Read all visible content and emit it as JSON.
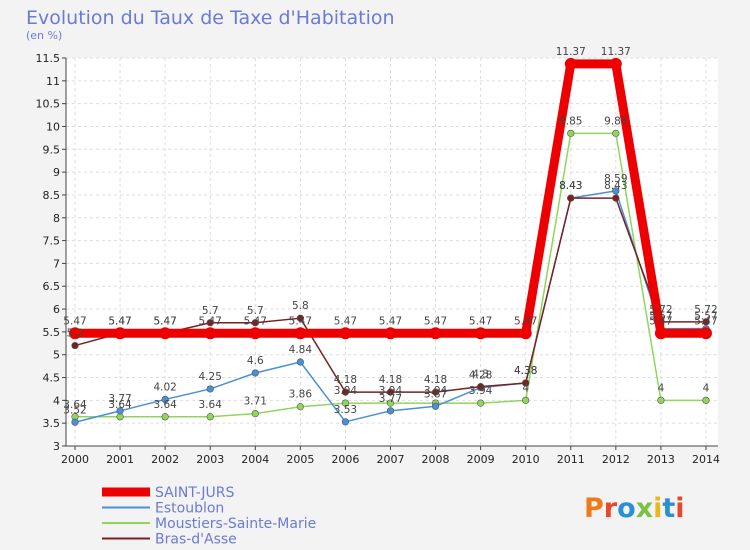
{
  "chart_data": {
    "type": "line",
    "title": "Evolution du Taux de Taxe d'Habitation",
    "subtitle": "(en %)",
    "xlabel": "",
    "ylabel": "",
    "categories": [
      "2000",
      "2001",
      "2002",
      "2003",
      "2004",
      "2005",
      "2006",
      "2007",
      "2008",
      "2009",
      "2010",
      "2011",
      "2012",
      "2013",
      "2014"
    ],
    "ylim": [
      3,
      11.5
    ],
    "yticks": [
      3,
      3.5,
      4,
      4.5,
      5,
      5.5,
      6,
      6.5,
      7,
      7.5,
      8,
      8.5,
      9,
      9.5,
      10,
      10.5,
      11,
      11.5
    ],
    "ytick_labels": [
      "3",
      "3.5",
      "4",
      "4.5",
      "5",
      "5.5",
      "6",
      "6.5",
      "7",
      "7.5",
      "8",
      "8.5",
      "9",
      "9.5",
      "10",
      "10.5",
      "11",
      "11.5"
    ],
    "grid": true,
    "series": [
      {
        "name": "SAINT-JURS",
        "color": "#ee0000",
        "values": [
          5.47,
          5.47,
          5.47,
          5.47,
          5.47,
          5.47,
          5.47,
          5.47,
          5.47,
          5.47,
          5.47,
          11.37,
          11.37,
          5.47,
          5.47
        ],
        "labels": [
          "5.47",
          "5.47",
          "5.47",
          "5.47",
          "5.47",
          "5.47",
          "5.47",
          "5.47",
          "5.47",
          "5.47",
          "5.47",
          "11.37",
          "11.37",
          "5.47",
          "5.47"
        ]
      },
      {
        "name": "Estoublon",
        "color": "#4a90d6",
        "values": [
          3.52,
          3.77,
          4.02,
          4.25,
          4.6,
          4.84,
          3.53,
          3.77,
          3.87,
          4.28,
          4.38,
          8.43,
          8.59,
          5.57,
          5.57
        ],
        "labels": [
          "3.52",
          "3.77",
          "4.02",
          "4.25",
          "4.6",
          "4.84",
          "3.53",
          "3.77",
          "3.87",
          "4.28",
          "4.38",
          "8.43",
          "8.59",
          "5.57",
          "5.57"
        ]
      },
      {
        "name": "Moustiers-Sainte-Marie",
        "color": "#8fd65a",
        "values": [
          3.64,
          3.64,
          3.64,
          3.64,
          3.71,
          3.86,
          3.94,
          3.94,
          3.94,
          3.94,
          4.0,
          9.85,
          9.85,
          4.0,
          4.0
        ],
        "labels": [
          "3.64",
          "3.64",
          "3.64",
          "3.64",
          "3.71",
          "3.86",
          "3.94",
          "3.94",
          "3.94",
          "3.94",
          "4",
          "9.85",
          "9.85",
          "4",
          "4"
        ]
      },
      {
        "name": "Bras-d'Asse",
        "color": "#7a2222",
        "values": [
          5.2,
          5.47,
          5.47,
          5.7,
          5.7,
          5.8,
          4.18,
          4.18,
          4.18,
          4.3,
          4.38,
          8.43,
          8.43,
          5.72,
          5.72
        ],
        "labels": [
          "5.2",
          "5.47",
          "5.47",
          "5.7",
          "5.7",
          "5.8",
          "4.18",
          "4.18",
          "4.18",
          "4.3",
          "4.38",
          "8.43",
          "8.43",
          "5.72",
          "5.72"
        ]
      }
    ],
    "legend_position": "bottom-left"
  },
  "logo": {
    "text": "Proxiti",
    "letter_colors": [
      "#f07a1a",
      "#e8482a",
      "#2a8fd6",
      "#7ac143",
      "#e8b81a",
      "#2a8fd6",
      "#e8482a"
    ]
  }
}
